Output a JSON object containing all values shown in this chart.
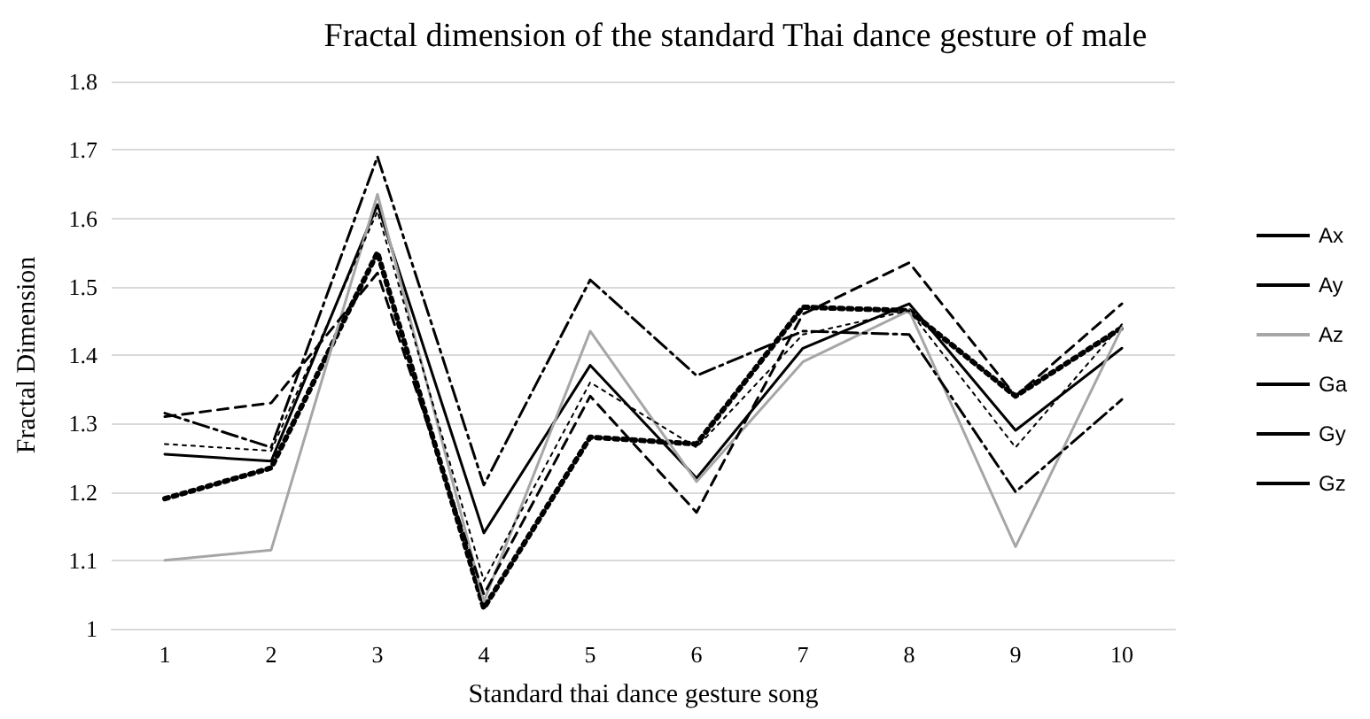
{
  "chart_data": {
    "type": "line",
    "title": "Fractal dimension of the standard Thai dance gesture of male",
    "xlabel": "Standard thai dance gesture song",
    "ylabel": "Fractal Dimension",
    "categories": [
      "1",
      "2",
      "3",
      "4",
      "5",
      "6",
      "7",
      "8",
      "9",
      "10"
    ],
    "series": [
      {
        "name": "Ax",
        "color": "#000000",
        "line_style": "solid",
        "values": [
          1.255,
          1.245,
          1.62,
          1.14,
          1.385,
          1.22,
          1.41,
          1.475,
          1.29,
          1.41
        ]
      },
      {
        "name": "Ay",
        "color": "#000000",
        "line_style": "dotted",
        "values": [
          1.19,
          1.235,
          1.55,
          1.03,
          1.28,
          1.27,
          1.47,
          1.465,
          1.34,
          1.44
        ]
      },
      {
        "name": "Az",
        "color": "#a6a6a6",
        "line_style": "solid",
        "values": [
          1.1,
          1.115,
          1.635,
          1.04,
          1.435,
          1.215,
          1.39,
          1.465,
          1.12,
          1.44
        ]
      },
      {
        "name": "Ga",
        "color": "#000000",
        "line_style": "dotted",
        "values": [
          1.27,
          1.26,
          1.61,
          1.07,
          1.36,
          1.265,
          1.43,
          1.465,
          1.265,
          1.445
        ]
      },
      {
        "name": "Gy",
        "color": "#000000",
        "line_style": "dashdot",
        "values": [
          1.315,
          1.265,
          1.69,
          1.21,
          1.51,
          1.37,
          1.435,
          1.43,
          1.2,
          1.335
        ]
      },
      {
        "name": "Gz",
        "color": "#000000",
        "line_style": "dashed",
        "values": [
          1.31,
          1.33,
          1.52,
          1.05,
          1.34,
          1.17,
          1.46,
          1.535,
          1.34,
          1.475
        ]
      }
    ],
    "ylim": [
      1,
      1.8
    ],
    "yticks": [
      1,
      1.1,
      1.2,
      1.3,
      1.4,
      1.5,
      1.6,
      1.7,
      1.8
    ],
    "grid": "y",
    "legend": "right",
    "marker": "none"
  }
}
